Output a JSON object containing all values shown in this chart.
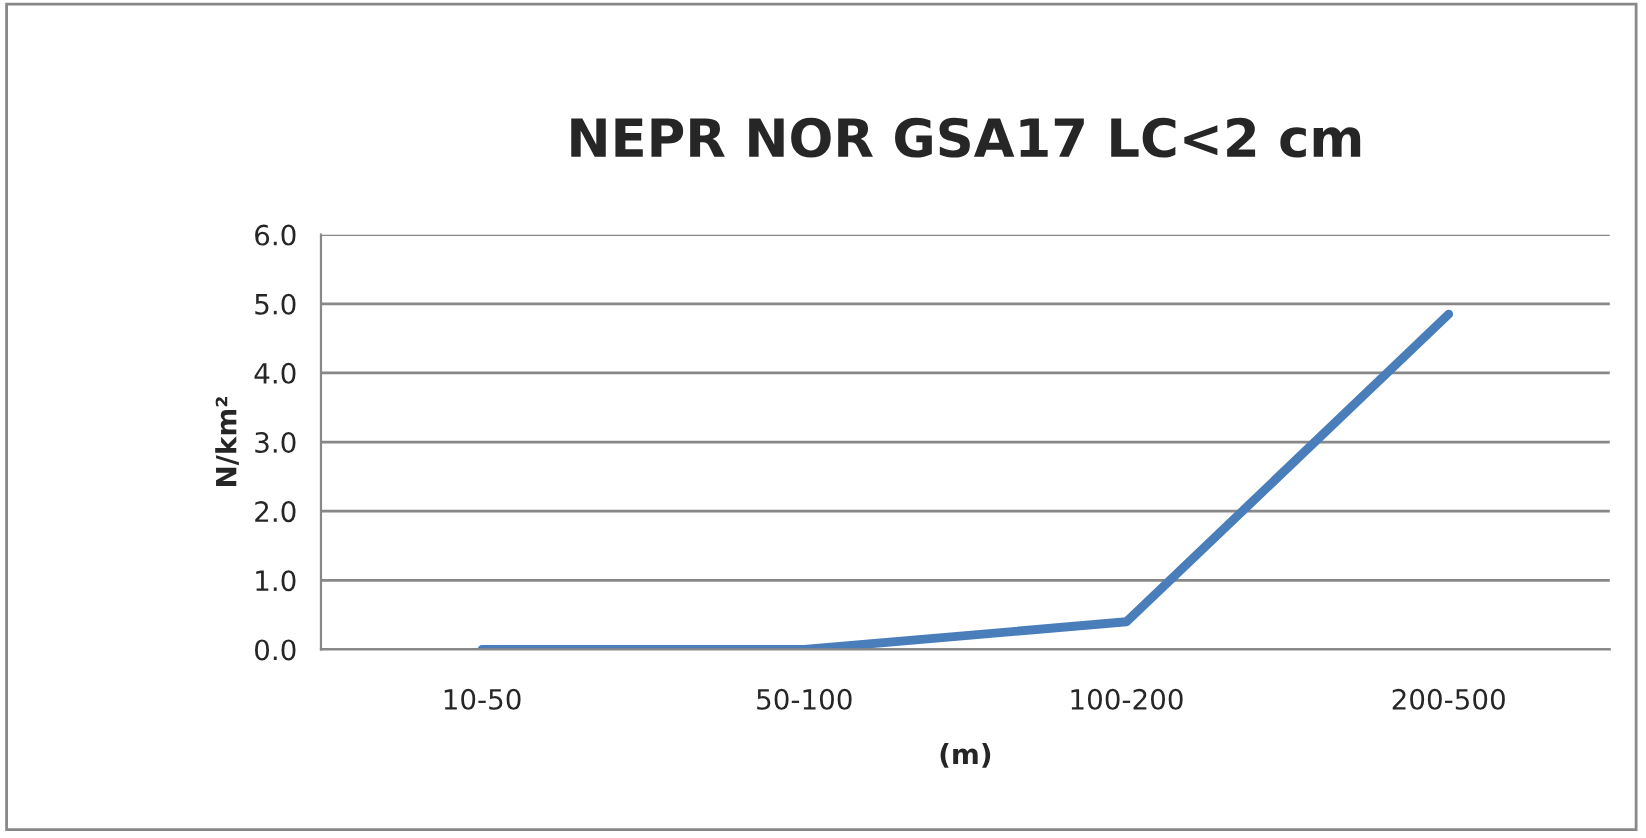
{
  "chart_data": {
    "type": "line",
    "title": "NEPR NOR GSA17 LC<2 cm",
    "xlabel": "(m)",
    "ylabel": "N/km²",
    "categories": [
      "10-50",
      "50-100",
      "100-200",
      "200-500"
    ],
    "series": [
      {
        "color": "#4a7ebb",
        "values": [
          0.0,
          0.0,
          0.4,
          4.85
        ]
      }
    ],
    "ylim": [
      0,
      6
    ],
    "yticks": [
      {
        "value": 0,
        "label": "0.0"
      },
      {
        "value": 1,
        "label": "1.0"
      },
      {
        "value": 2,
        "label": "2.0"
      },
      {
        "value": 3,
        "label": "3.0"
      },
      {
        "value": 4,
        "label": "4.0"
      },
      {
        "value": 5,
        "label": "5.0"
      },
      {
        "value": 6,
        "label": "6.0"
      }
    ],
    "grid": "y",
    "marker": "none",
    "line_style": "solid"
  }
}
